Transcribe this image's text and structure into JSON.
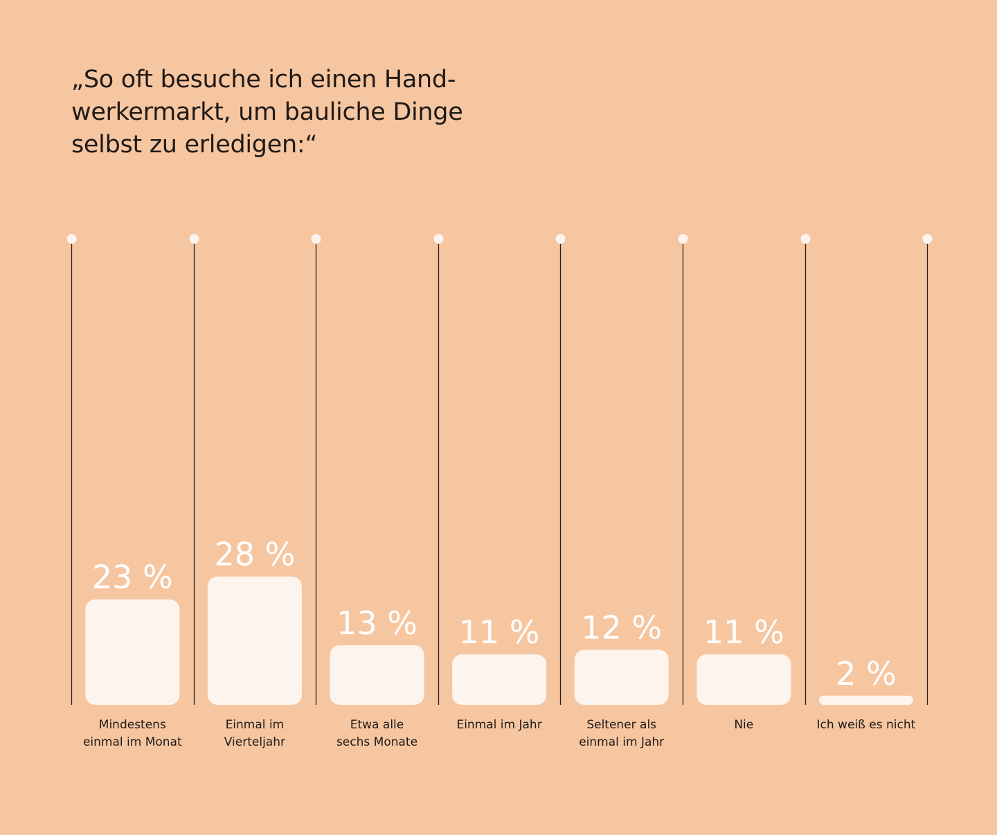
{
  "title": "„So oft besuche ich einen Hand-werkermarkt, um bauliche Dinge selbst zu erledigen:“",
  "title_lines": [
    "„So oft besuche ich einen Hand-",
    "werkermarkt, um bauliche Dinge",
    "selbst zu erledigen:“"
  ],
  "colors": {
    "background": "#f6c6a1",
    "bar": "#fdf4ee",
    "divider": "#2a211c",
    "text": "#1f1a17",
    "value_label": "#ffffff"
  },
  "chart_data": {
    "type": "bar",
    "title": "„So oft besuche ich einen Hand-werkermarkt, um bauliche Dinge selbst zu erledigen:“",
    "xlabel": "",
    "ylabel": "",
    "unit": "%",
    "ylim": [
      0,
      100
    ],
    "grid": false,
    "legend": "none",
    "categories": [
      [
        "Mindestens",
        "einmal im Monat"
      ],
      [
        "Einmal im",
        "Vierteljahr"
      ],
      [
        "Etwa alle",
        "sechs Monate"
      ],
      [
        "Einmal im Jahr"
      ],
      [
        "Seltener als",
        "einmal im Jahr"
      ],
      [
        "Nie"
      ],
      [
        "Ich weiß es nicht"
      ]
    ],
    "values": [
      23,
      28,
      13,
      11,
      12,
      11,
      2
    ],
    "value_labels": [
      "23 %",
      "28 %",
      "13 %",
      "11 %",
      "12 %",
      "11 %",
      "2 %"
    ]
  }
}
